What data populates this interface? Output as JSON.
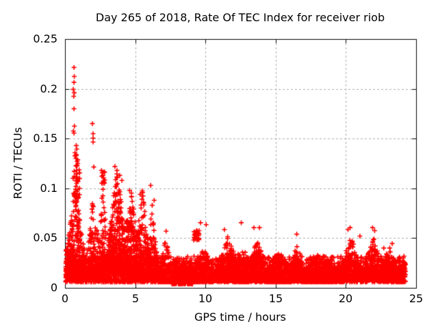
{
  "chart_data": {
    "type": "scatter",
    "title": "Day 265 of 2018, Rate Of TEC Index for receiver riob",
    "xlabel": "GPS time / hours",
    "ylabel": "ROTI / TECUs",
    "xlim": [
      0,
      25
    ],
    "ylim": [
      0,
      0.25
    ],
    "xticks": [
      0,
      5,
      10,
      15,
      20,
      25
    ],
    "yticks": [
      0,
      0.05,
      0.1,
      0.15,
      0.2,
      0.25
    ],
    "xtick_labels": [
      "0",
      "5",
      "10",
      "15",
      "20",
      "25"
    ],
    "ytick_labels": [
      "0",
      "0.05",
      "0.1",
      "0.15",
      "0.2",
      "0.25"
    ],
    "grid": true,
    "grid_style": "dashed",
    "legend": "none",
    "marker": "plus",
    "marker_color": "#ff0000",
    "grid_color": "#ababab",
    "axis_color": "#000000",
    "background_color": "#ffffff",
    "seed": 42,
    "outlier_points": [
      [
        0.64,
        0.2215
      ],
      [
        0.66,
        0.2125
      ],
      [
        0.64,
        0.2065
      ],
      [
        0.59,
        0.1995
      ],
      [
        0.66,
        0.196
      ],
      [
        0.62,
        0.1925
      ],
      [
        0.64,
        0.18
      ],
      [
        0.67,
        0.1625
      ],
      [
        0.6,
        0.1575
      ],
      [
        0.64,
        0.1555
      ],
      [
        0.8,
        0.143
      ],
      [
        0.84,
        0.1395
      ],
      [
        0.8,
        0.134
      ],
      [
        0.78,
        0.13
      ],
      [
        0.86,
        0.127
      ],
      [
        0.81,
        0.1225
      ],
      [
        0.83,
        0.118
      ],
      [
        0.79,
        0.1145
      ],
      [
        0.85,
        0.1115
      ],
      [
        0.8,
        0.108
      ],
      [
        0.83,
        0.105
      ],
      [
        0.78,
        0.102
      ],
      [
        1.95,
        0.165
      ],
      [
        2.0,
        0.155
      ],
      [
        2.0,
        0.1505
      ],
      [
        2.0,
        0.1465
      ],
      [
        2.05,
        0.1215
      ],
      [
        2.6,
        0.118
      ],
      [
        2.65,
        0.1155
      ],
      [
        2.7,
        0.113
      ],
      [
        2.75,
        0.1105
      ],
      [
        2.8,
        0.1165
      ],
      [
        2.62,
        0.112
      ],
      [
        3.55,
        0.122
      ],
      [
        3.7,
        0.118
      ],
      [
        3.9,
        0.113
      ],
      [
        4.05,
        0.108
      ],
      [
        4.6,
        0.098
      ],
      [
        5.35,
        0.094
      ],
      [
        5.5,
        0.0975
      ],
      [
        6.1,
        0.103
      ],
      [
        6.35,
        0.088
      ],
      [
        7.2,
        0.057
      ],
      [
        9.65,
        0.0655
      ],
      [
        10.05,
        0.0635
      ],
      [
        11.35,
        0.0585
      ],
      [
        12.55,
        0.0655
      ],
      [
        13.45,
        0.0605
      ],
      [
        13.85,
        0.0605
      ],
      [
        16.5,
        0.054
      ],
      [
        20.15,
        0.0585
      ],
      [
        20.3,
        0.0605
      ],
      [
        21.0,
        0.052
      ],
      [
        21.9,
        0.0605
      ],
      [
        22.05,
        0.0575
      ],
      [
        22.7,
        0.04
      ],
      [
        23.3,
        0.0445
      ]
    ],
    "clusters": [
      {
        "x0": 0.02,
        "x1": 24.2,
        "y0": 0.006,
        "y1": 0.032,
        "n": 2600,
        "expo": 2.0,
        "peak": null,
        "hw": 1,
        "floor": 1
      },
      {
        "x0": 0.05,
        "x1": 1.45,
        "y0": 0.01,
        "y1": 0.105,
        "n": 420,
        "expo": 2.2,
        "peak": 0.75,
        "hw": 0.9,
        "floor": 0.3
      },
      {
        "x0": 0.55,
        "x1": 1.05,
        "y0": 0.09,
        "y1": 0.148,
        "n": 34,
        "expo": 1.6,
        "peak": 0.8,
        "hw": 0.5,
        "floor": 0.5
      },
      {
        "x0": 1.5,
        "x1": 2.35,
        "y0": 0.01,
        "y1": 0.098,
        "n": 170,
        "expo": 2.4,
        "peak": 2.0,
        "hw": 0.6,
        "floor": 0.25
      },
      {
        "x0": 2.35,
        "x1": 3.15,
        "y0": 0.01,
        "y1": 0.1,
        "n": 200,
        "expo": 2.6,
        "peak": 2.7,
        "hw": 0.7,
        "floor": 0.2
      },
      {
        "x0": 2.55,
        "x1": 2.9,
        "y0": 0.105,
        "y1": 0.119,
        "n": 12,
        "expo": 1.5,
        "peak": null,
        "hw": 1,
        "floor": 1
      },
      {
        "x0": 3.1,
        "x1": 4.35,
        "y0": 0.015,
        "y1": 0.122,
        "n": 520,
        "expo": 2.3,
        "peak": 3.7,
        "hw": 0.9,
        "floor": 0.25
      },
      {
        "x0": 4.35,
        "x1": 5.15,
        "y0": 0.012,
        "y1": 0.098,
        "n": 300,
        "expo": 2.6,
        "peak": 4.75,
        "hw": 0.7,
        "floor": 0.2
      },
      {
        "x0": 4.35,
        "x1": 4.75,
        "y0": 0.058,
        "y1": 0.068,
        "n": 30,
        "expo": 1.3,
        "peak": null,
        "hw": 1,
        "floor": 1
      },
      {
        "x0": 5.15,
        "x1": 6.05,
        "y0": 0.012,
        "y1": 0.1,
        "n": 280,
        "expo": 2.5,
        "peak": 5.5,
        "hw": 0.7,
        "floor": 0.2
      },
      {
        "x0": 6.05,
        "x1": 6.65,
        "y0": 0.01,
        "y1": 0.092,
        "n": 150,
        "expo": 2.4,
        "peak": 6.2,
        "hw": 0.5,
        "floor": 0.2
      },
      {
        "x0": 6.65,
        "x1": 7.6,
        "y0": 0.006,
        "y1": 0.055,
        "n": 140,
        "expo": 3.0,
        "peak": 7.2,
        "hw": 0.6,
        "floor": 0.1
      },
      {
        "x0": 7.6,
        "x1": 9.1,
        "y0": 0.004,
        "y1": 0.026,
        "n": 260,
        "expo": 2.0,
        "peak": null,
        "hw": 1,
        "floor": 1
      },
      {
        "x0": 9.15,
        "x1": 9.55,
        "y0": 0.048,
        "y1": 0.058,
        "n": 26,
        "expo": 1.4,
        "peak": null,
        "hw": 1,
        "floor": 1
      },
      {
        "x0": 9.1,
        "x1": 10.6,
        "y0": 0.006,
        "y1": 0.04,
        "n": 260,
        "expo": 2.6,
        "peak": 9.9,
        "hw": 1.2,
        "floor": 0.3
      },
      {
        "x0": 10.6,
        "x1": 12.3,
        "y0": 0.007,
        "y1": 0.052,
        "n": 420,
        "expo": 2.6,
        "peak": 11.6,
        "hw": 1.2,
        "floor": 0.3
      },
      {
        "x0": 12.3,
        "x1": 13.1,
        "y0": 0.006,
        "y1": 0.036,
        "n": 180,
        "expo": 2.4,
        "peak": null,
        "hw": 1,
        "floor": 1
      },
      {
        "x0": 13.1,
        "x1": 14.3,
        "y0": 0.007,
        "y1": 0.054,
        "n": 330,
        "expo": 2.6,
        "peak": 13.7,
        "hw": 0.8,
        "floor": 0.25
      },
      {
        "x0": 14.3,
        "x1": 16.1,
        "y0": 0.006,
        "y1": 0.038,
        "n": 420,
        "expo": 2.5,
        "peak": 15.2,
        "hw": 1.5,
        "floor": 0.4
      },
      {
        "x0": 16.1,
        "x1": 17.0,
        "y0": 0.007,
        "y1": 0.05,
        "n": 220,
        "expo": 2.6,
        "peak": 16.55,
        "hw": 0.6,
        "floor": 0.25
      },
      {
        "x0": 17.0,
        "x1": 19.4,
        "y0": 0.006,
        "y1": 0.036,
        "n": 520,
        "expo": 2.5,
        "peak": 18.2,
        "hw": 2.0,
        "floor": 0.45
      },
      {
        "x0": 19.4,
        "x1": 20.9,
        "y0": 0.008,
        "y1": 0.055,
        "n": 330,
        "expo": 2.5,
        "peak": 20.35,
        "hw": 0.9,
        "floor": 0.3
      },
      {
        "x0": 20.9,
        "x1": 22.35,
        "y0": 0.008,
        "y1": 0.052,
        "n": 360,
        "expo": 2.5,
        "peak": 21.95,
        "hw": 0.9,
        "floor": 0.3
      },
      {
        "x0": 22.35,
        "x1": 23.8,
        "y0": 0.007,
        "y1": 0.042,
        "n": 330,
        "expo": 2.5,
        "peak": 23.1,
        "hw": 1.0,
        "floor": 0.35
      },
      {
        "x0": 23.8,
        "x1": 24.25,
        "y0": 0.006,
        "y1": 0.028,
        "n": 90,
        "expo": 2.0,
        "peak": null,
        "hw": 1,
        "floor": 1
      }
    ]
  }
}
